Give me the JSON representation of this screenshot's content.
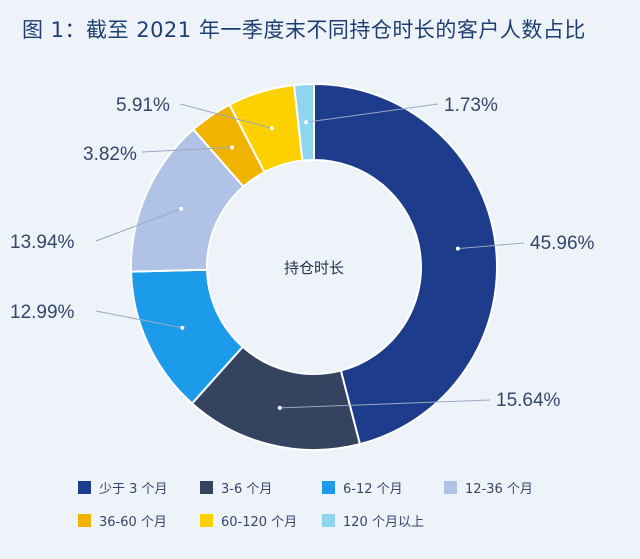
{
  "title": "图 1：截至 2021 年一季度末不同持仓时长的客户人数占比",
  "chart_data": {
    "type": "pie",
    "variant": "donut",
    "center_label": "持仓时长",
    "slices": [
      {
        "label": "少于 3 个月",
        "value": 45.96,
        "value_label": "45.96%",
        "color": "#1e3c8c"
      },
      {
        "label": "3-6 个月",
        "value": 15.64,
        "value_label": "15.64%",
        "color": "#34435f"
      },
      {
        "label": "6-12 个月",
        "value": 12.99,
        "value_label": "12.99%",
        "color": "#1b9bea"
      },
      {
        "label": "12-36 个月",
        "value": 13.94,
        "value_label": "13.94%",
        "color": "#b0c3e6"
      },
      {
        "label": "36-60 个月",
        "value": 3.82,
        "value_label": "3.82%",
        "color": "#f0b400"
      },
      {
        "label": "60-120 个月",
        "value": 5.91,
        "value_label": "5.91%",
        "color": "#fdd000"
      },
      {
        "label": "120 个月以上",
        "value": 1.73,
        "value_label": "1.73%",
        "color": "#8fd5ee"
      }
    ],
    "legend_position": "bottom"
  }
}
